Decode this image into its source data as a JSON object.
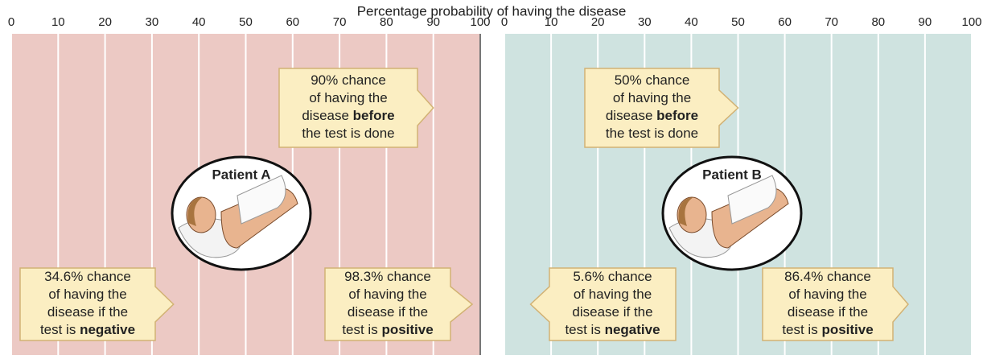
{
  "title": "Percentage probability of having the disease",
  "panels": [
    {
      "patient": "Patient A",
      "xlim": [
        0,
        100
      ],
      "xticks": [
        0,
        10,
        20,
        30,
        40,
        50,
        60,
        70,
        80,
        90,
        100
      ],
      "callouts": [
        {
          "value": 90,
          "lines": [
            {
              "text": "90% chance"
            },
            {
              "text": "of having the"
            },
            {
              "text": "disease ",
              "bold": "before"
            },
            {
              "text": "the test is done"
            }
          ]
        },
        {
          "value": 34.6,
          "lines": [
            {
              "text": "34.6% chance"
            },
            {
              "text": "of having the"
            },
            {
              "text": "disease if the"
            },
            {
              "text": "test is ",
              "bold": "negative"
            }
          ]
        },
        {
          "value": 98.3,
          "lines": [
            {
              "text": "98.3% chance"
            },
            {
              "text": "of having the"
            },
            {
              "text": "disease if the"
            },
            {
              "text": "test is ",
              "bold": "positive"
            }
          ]
        }
      ]
    },
    {
      "patient": "Patient B",
      "xlim": [
        0,
        100
      ],
      "xticks": [
        0,
        10,
        20,
        30,
        40,
        50,
        60,
        70,
        80,
        90,
        100
      ],
      "callouts": [
        {
          "value": 50,
          "lines": [
            {
              "text": "50% chance"
            },
            {
              "text": "of having the"
            },
            {
              "text": "disease ",
              "bold": "before"
            },
            {
              "text": "the test is done"
            }
          ]
        },
        {
          "value": 5.6,
          "lines": [
            {
              "text": "5.6% chance"
            },
            {
              "text": "of having the"
            },
            {
              "text": "disease if the"
            },
            {
              "text": "test is ",
              "bold": "negative"
            }
          ]
        },
        {
          "value": 86.4,
          "lines": [
            {
              "text": "86.4% chance"
            },
            {
              "text": "of having the"
            },
            {
              "text": "disease if the"
            },
            {
              "text": "test is ",
              "bold": "positive"
            }
          ]
        }
      ]
    }
  ]
}
